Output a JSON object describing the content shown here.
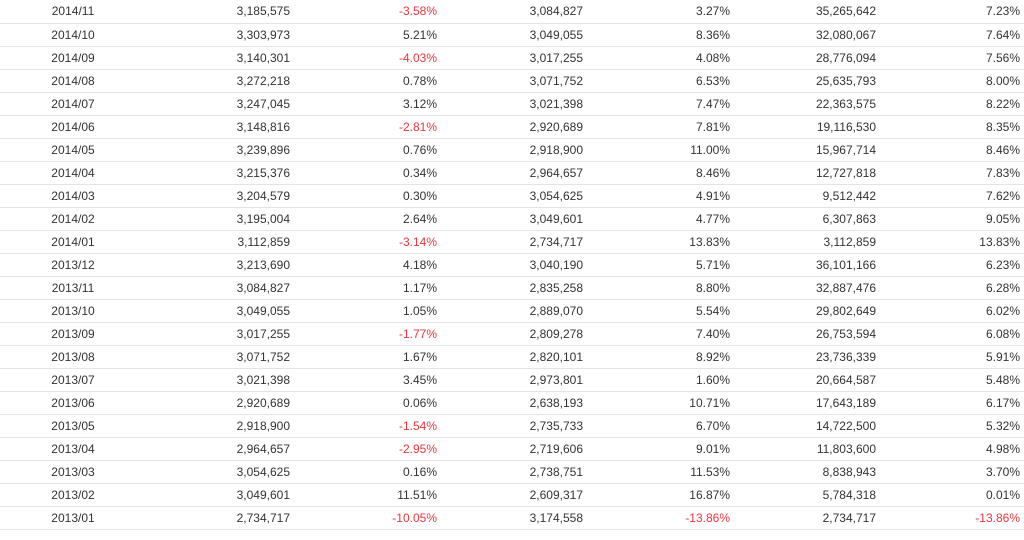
{
  "table": {
    "rows": [
      [
        "2014/11",
        "3,185,575",
        "-3.58%",
        "3,084,827",
        "3.27%",
        "35,265,642",
        "7.23%"
      ],
      [
        "2014/10",
        "3,303,973",
        "5.21%",
        "3,049,055",
        "8.36%",
        "32,080,067",
        "7.64%"
      ],
      [
        "2014/09",
        "3,140,301",
        "-4.03%",
        "3,017,255",
        "4.08%",
        "28,776,094",
        "7.56%"
      ],
      [
        "2014/08",
        "3,272,218",
        "0.78%",
        "3,071,752",
        "6.53%",
        "25,635,793",
        "8.00%"
      ],
      [
        "2014/07",
        "3,247,045",
        "3.12%",
        "3,021,398",
        "7.47%",
        "22,363,575",
        "8.22%"
      ],
      [
        "2014/06",
        "3,148,816",
        "-2.81%",
        "2,920,689",
        "7.81%",
        "19,116,530",
        "8.35%"
      ],
      [
        "2014/05",
        "3,239,896",
        "0.76%",
        "2,918,900",
        "11.00%",
        "15,967,714",
        "8.46%"
      ],
      [
        "2014/04",
        "3,215,376",
        "0.34%",
        "2,964,657",
        "8.46%",
        "12,727,818",
        "7.83%"
      ],
      [
        "2014/03",
        "3,204,579",
        "0.30%",
        "3,054,625",
        "4.91%",
        "9,512,442",
        "7.62%"
      ],
      [
        "2014/02",
        "3,195,004",
        "2.64%",
        "3,049,601",
        "4.77%",
        "6,307,863",
        "9.05%"
      ],
      [
        "2014/01",
        "3,112,859",
        "-3.14%",
        "2,734,717",
        "13.83%",
        "3,112,859",
        "13.83%"
      ],
      [
        "2013/12",
        "3,213,690",
        "4.18%",
        "3,040,190",
        "5.71%",
        "36,101,166",
        "6.23%"
      ],
      [
        "2013/11",
        "3,084,827",
        "1.17%",
        "2,835,258",
        "8.80%",
        "32,887,476",
        "6.28%"
      ],
      [
        "2013/10",
        "3,049,055",
        "1.05%",
        "2,889,070",
        "5.54%",
        "29,802,649",
        "6.02%"
      ],
      [
        "2013/09",
        "3,017,255",
        "-1.77%",
        "2,809,278",
        "7.40%",
        "26,753,594",
        "6.08%"
      ],
      [
        "2013/08",
        "3,071,752",
        "1.67%",
        "2,820,101",
        "8.92%",
        "23,736,339",
        "5.91%"
      ],
      [
        "2013/07",
        "3,021,398",
        "3.45%",
        "2,973,801",
        "1.60%",
        "20,664,587",
        "5.48%"
      ],
      [
        "2013/06",
        "2,920,689",
        "0.06%",
        "2,638,193",
        "10.71%",
        "17,643,189",
        "6.17%"
      ],
      [
        "2013/05",
        "2,918,900",
        "-1.54%",
        "2,735,733",
        "6.70%",
        "14,722,500",
        "5.32%"
      ],
      [
        "2013/04",
        "2,964,657",
        "-2.95%",
        "2,719,606",
        "9.01%",
        "11,803,600",
        "4.98%"
      ],
      [
        "2013/03",
        "3,054,625",
        "0.16%",
        "2,738,751",
        "11.53%",
        "8,838,943",
        "3.70%"
      ],
      [
        "2013/02",
        "3,049,601",
        "11.51%",
        "2,609,317",
        "16.87%",
        "5,784,318",
        "0.01%"
      ],
      [
        "2013/01",
        "2,734,717",
        "-10.05%",
        "3,174,558",
        "-13.86%",
        "2,734,717",
        "-13.86%"
      ]
    ]
  },
  "colors": {
    "text": "#333333",
    "negative": "#e8373e",
    "row_border": "#e4e4e4",
    "background": "#ffffff"
  }
}
